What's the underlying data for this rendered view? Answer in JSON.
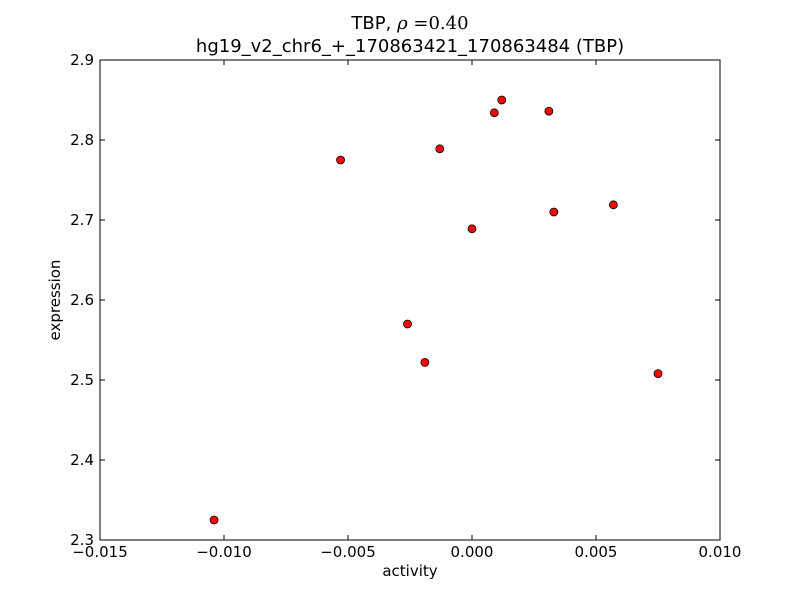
{
  "chart_data": {
    "type": "scatter",
    "title": {
      "gene": "TBP, ",
      "rho_symbol": "ρ",
      "rho_eq": " =0.40"
    },
    "subtitle": "hg19_v2_chr6_+_170863421_170863484 (TBP)",
    "xlabel": "activity",
    "ylabel": "expression",
    "xlim": [
      -0.015,
      0.01
    ],
    "ylim": [
      2.3,
      2.9
    ],
    "x_ticks": [
      -0.015,
      -0.01,
      -0.005,
      0.0,
      0.005,
      0.01
    ],
    "x_tick_labels": [
      "−0.015",
      "−0.010",
      "−0.005",
      "0.000",
      "0.005",
      "0.010"
    ],
    "y_ticks": [
      2.3,
      2.4,
      2.5,
      2.6,
      2.7,
      2.8,
      2.9
    ],
    "y_tick_labels": [
      "2.3",
      "2.4",
      "2.5",
      "2.6",
      "2.7",
      "2.8",
      "2.9"
    ],
    "grid": false,
    "marker_color": "#ff0000",
    "points": [
      {
        "x": -0.0104,
        "y": 2.325
      },
      {
        "x": -0.0053,
        "y": 2.775
      },
      {
        "x": -0.0026,
        "y": 2.57
      },
      {
        "x": -0.0019,
        "y": 2.522
      },
      {
        "x": -0.0013,
        "y": 2.789
      },
      {
        "x": 0.0,
        "y": 2.689
      },
      {
        "x": 0.0009,
        "y": 2.834
      },
      {
        "x": 0.0012,
        "y": 2.85
      },
      {
        "x": 0.0031,
        "y": 2.836
      },
      {
        "x": 0.0033,
        "y": 2.71
      },
      {
        "x": 0.0057,
        "y": 2.719
      },
      {
        "x": 0.0075,
        "y": 2.508
      }
    ]
  }
}
